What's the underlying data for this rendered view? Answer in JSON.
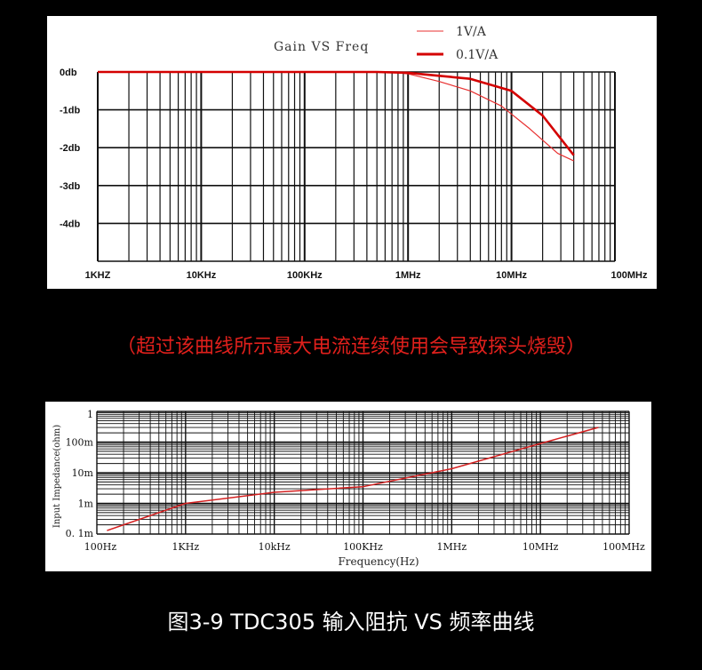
{
  "chart_data": [
    {
      "type": "line",
      "title": "Gain VS Freq",
      "xscale": "log",
      "x_tick_labels": [
        "1KHZ",
        "10KHz",
        "100KHz",
        "1MHz",
        "10MHz",
        "100MHz"
      ],
      "x_ticks_hz": [
        1000,
        10000,
        100000,
        1000000,
        10000000,
        100000000
      ],
      "y_tick_labels": [
        "0db",
        "-1db",
        "-2db",
        "-3db",
        "-4db"
      ],
      "y_ticks": [
        0,
        -1,
        -2,
        -3,
        -4
      ],
      "ylim": [
        -5,
        0
      ],
      "grid": true,
      "legend_position": "top-right",
      "series": [
        {
          "name": "1V/A",
          "color": "#e83030",
          "x": [
            1000,
            300000,
            700000,
            1000000,
            2000000,
            4000000,
            8000000,
            15000000,
            28000000,
            40000000
          ],
          "y": [
            0,
            0,
            0,
            -0.05,
            -0.25,
            -0.5,
            -0.9,
            -1.5,
            -2.15,
            -2.35
          ]
        },
        {
          "name": "0.1V/A",
          "color": "#d40000",
          "x": [
            1000,
            500000,
            1000000,
            2000000,
            4000000,
            10000000,
            20000000,
            40000000
          ],
          "y": [
            0,
            0,
            -0.02,
            -0.1,
            -0.18,
            -0.5,
            -1.15,
            -2.2
          ]
        }
      ]
    },
    {
      "type": "line",
      "xlabel": "Frequency(Hz)",
      "ylabel": "Input Impedance(ohm)",
      "xscale": "log",
      "yscale": "log",
      "x_tick_labels": [
        "100Hz",
        "1KHz",
        "10kHz",
        "100KHz",
        "1MHz",
        "10MHz",
        "100MHz"
      ],
      "x_ticks_hz": [
        100,
        1000,
        10000,
        100000,
        1000000,
        10000000,
        100000000
      ],
      "y_tick_labels": [
        "1",
        "100m",
        "10m",
        "1m",
        "0. 1m"
      ],
      "y_ticks_ohm": [
        1,
        0.1,
        0.01,
        0.001,
        0.0001
      ],
      "grid": true,
      "series": [
        {
          "color": "#d42020",
          "x": [
            130,
            1000,
            10000,
            100000,
            1000000,
            10000000,
            45000000
          ],
          "y": [
            0.00013,
            0.001,
            0.0023,
            0.0035,
            0.0135,
            0.09,
            0.3
          ]
        }
      ]
    }
  ],
  "texts": {
    "warning": "（超过该曲线所示最大电流连续使用会导致探头烧毁）",
    "caption": "图3-9 TDC305 输入阻抗 VS 频率曲线"
  }
}
